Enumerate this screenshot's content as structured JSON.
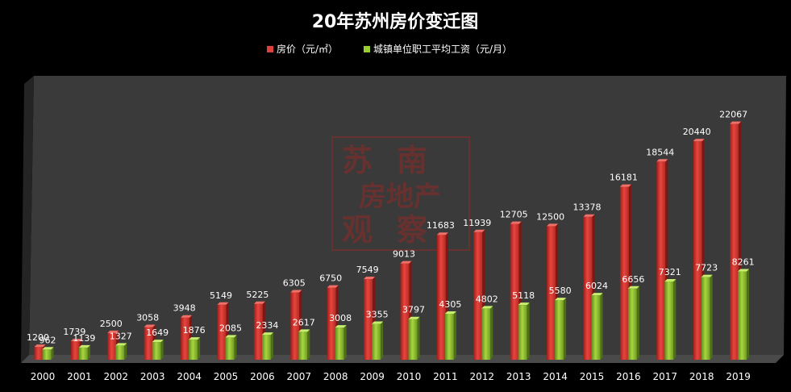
{
  "chart_data": {
    "type": "bar",
    "title": "20年苏州房价变迁图",
    "categories": [
      "2000",
      "2001",
      "2002",
      "2003",
      "2004",
      "2005",
      "2006",
      "2007",
      "2008",
      "2009",
      "2010",
      "2011",
      "2012",
      "2013",
      "2014",
      "2015",
      "2016",
      "2017",
      "2018",
      "2019"
    ],
    "series": [
      {
        "name": "房价（元/㎡）",
        "color": "#e0403a",
        "values": [
          1200,
          1739,
          2500,
          3058,
          3948,
          5149,
          5225,
          6305,
          6750,
          7549,
          9013,
          11683,
          11939,
          12705,
          12500,
          13378,
          16181,
          18544,
          20440,
          22067
        ]
      },
      {
        "name": "城镇单位职工平均工资（元/月）",
        "color": "#9acd32",
        "values": [
          962,
          1139,
          1327,
          1649,
          1876,
          2085,
          2334,
          2617,
          3008,
          3355,
          3797,
          4305,
          4802,
          5118,
          5580,
          6024,
          6656,
          7321,
          7723,
          8261
        ]
      }
    ],
    "ylim": [
      0,
      24000
    ],
    "grid": false,
    "legend_position": "top-center",
    "watermark": {
      "line1": "苏南",
      "line2": "房地产",
      "line3": "观察"
    },
    "colors": {
      "background": "#000000",
      "plot_area": "#3a3a3a",
      "text": "#ffffff"
    }
  }
}
